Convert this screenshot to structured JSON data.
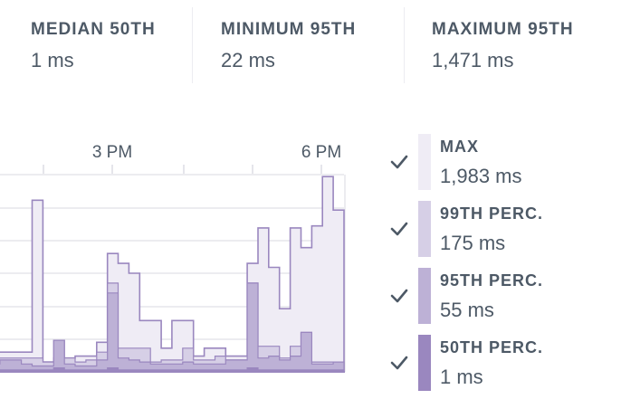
{
  "stats": [
    {
      "label": "MEDIAN 50TH",
      "value": "1 ms"
    },
    {
      "label": "MINIMUM 95TH",
      "value": "22 ms"
    },
    {
      "label": "MAXIMUM 95TH",
      "value": "1,471 ms"
    }
  ],
  "legend": [
    {
      "label": "MAX",
      "value": "1,983 ms",
      "color": "#efecf5",
      "checked": true
    },
    {
      "label": "99TH PERC.",
      "value": "175 ms",
      "color": "#d6cfe6",
      "checked": true
    },
    {
      "label": "95TH PERC.",
      "value": "55 ms",
      "color": "#bdb1d6",
      "checked": true
    },
    {
      "label": "50TH PERC.",
      "value": "1 ms",
      "color": "#9a87bf",
      "checked": true
    }
  ],
  "chart_data": {
    "type": "area",
    "title": "",
    "xlabel": "",
    "ylabel": "",
    "tick_labels": [
      "3 PM",
      "6 PM"
    ],
    "x": [
      0,
      1,
      2,
      3,
      4,
      5,
      6,
      7,
      8,
      9,
      10,
      11,
      12,
      13,
      14,
      15,
      16,
      17,
      18,
      19,
      20,
      21,
      22,
      23,
      24,
      25,
      26,
      27,
      28,
      29,
      30,
      31,
      32
    ],
    "ylim": [
      0,
      1
    ],
    "series": [
      {
        "name": "MAX",
        "color": "#efecf5",
        "stroke": "#9a87bf",
        "values": [
          0.1,
          0.1,
          0.1,
          0.1,
          0.87,
          0.05,
          0.07,
          0.07,
          0.08,
          0.08,
          0.15,
          0.6,
          0.55,
          0.5,
          0.26,
          0.26,
          0.12,
          0.26,
          0.26,
          0.08,
          0.12,
          0.12,
          0.08,
          0.08,
          0.55,
          0.73,
          0.53,
          0.32,
          0.73,
          0.63,
          0.74,
          0.99,
          0.82
        ]
      },
      {
        "name": "99TH PERC.",
        "color": "#d6cfe6",
        "stroke": "#9a87bf",
        "values": [
          0.07,
          0.07,
          0.07,
          0.07,
          0.07,
          0.05,
          0.16,
          0.07,
          0.05,
          0.06,
          0.1,
          0.45,
          0.12,
          0.12,
          0.12,
          0.05,
          0.06,
          0.06,
          0.12,
          0.06,
          0.06,
          0.08,
          0.06,
          0.06,
          0.45,
          0.13,
          0.13,
          0.07,
          0.13,
          0.2,
          0.05,
          0.05,
          0.05
        ]
      },
      {
        "name": "95TH PERC.",
        "color": "#bdb1d6",
        "stroke": "#9a87bf",
        "values": [
          0.04,
          0.06,
          0.06,
          0.04,
          0.03,
          0.03,
          0.16,
          0.04,
          0.03,
          0.03,
          0.06,
          0.4,
          0.07,
          0.06,
          0.05,
          0.04,
          0.04,
          0.04,
          0.05,
          0.04,
          0.04,
          0.04,
          0.06,
          0.06,
          0.45,
          0.07,
          0.08,
          0.06,
          0.08,
          0.2,
          0.04,
          0.04,
          0.05
        ]
      },
      {
        "name": "50TH PERC.",
        "color": "#9a87bf",
        "stroke": "#9a87bf",
        "values": [
          0.01,
          0.01,
          0.01,
          0.01,
          0.01,
          0.01,
          0.02,
          0.01,
          0.01,
          0.01,
          0.01,
          0.02,
          0.01,
          0.01,
          0.01,
          0.01,
          0.01,
          0.01,
          0.01,
          0.01,
          0.01,
          0.01,
          0.01,
          0.01,
          0.02,
          0.01,
          0.01,
          0.01,
          0.01,
          0.01,
          0.01,
          0.01,
          0.01
        ]
      }
    ],
    "grid": true
  }
}
